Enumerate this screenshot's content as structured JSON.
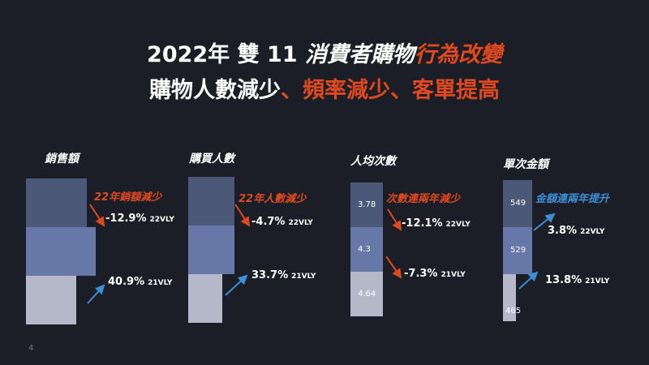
{
  "title": {
    "line1_white": "2022年 雙 11 ",
    "line1_italic": "消費者購物",
    "line1_orange": "行為改變",
    "line2_white": "購物人數減少",
    "line2_orange": "、頻率減少、客單提高"
  },
  "page_number": "4",
  "colors": {
    "dark_bar": "#4b5878",
    "mid_bar": "#6677a8",
    "light_bar": "#b5b8c8",
    "down": "#e0491f",
    "up": "#3c8fd6"
  },
  "chart_data": [
    {
      "type": "bar",
      "title": "銷售額",
      "note": "22年銷額減少",
      "bars": [
        {
          "label": "",
          "value": null
        },
        {
          "label": "",
          "value": null
        },
        {
          "label": "",
          "value": null
        }
      ],
      "changes": [
        {
          "value": "-12.9%",
          "period": "22VLY",
          "direction": "down"
        },
        {
          "value": "40.9%",
          "period": "21VLY",
          "direction": "up"
        }
      ]
    },
    {
      "type": "bar",
      "title": "購買人數",
      "note": "22年人數減少",
      "bars": [
        {
          "label": "",
          "value": null
        },
        {
          "label": "",
          "value": null
        },
        {
          "label": "",
          "value": null
        }
      ],
      "changes": [
        {
          "value": "-4.7%",
          "period": "22VLY",
          "direction": "down"
        },
        {
          "value": "33.7%",
          "period": "21VLY",
          "direction": "up"
        }
      ]
    },
    {
      "type": "bar",
      "title": "人均次數",
      "note": "次數連兩年減少",
      "bars": [
        {
          "label": "3.78",
          "value": 3.78
        },
        {
          "label": "4.3",
          "value": 4.3
        },
        {
          "label": "4.64",
          "value": 4.64
        }
      ],
      "changes": [
        {
          "value": "-12.1%",
          "period": "22VLY",
          "direction": "down"
        },
        {
          "value": "-7.3%",
          "period": "21VLY",
          "direction": "down"
        }
      ]
    },
    {
      "type": "bar",
      "title": "單次金額",
      "note": "金額連兩年提升",
      "bars": [
        {
          "label": "549",
          "value": 549
        },
        {
          "label": "529",
          "value": 529
        },
        {
          "label": "465",
          "value": 465
        }
      ],
      "changes": [
        {
          "value": "3.8%",
          "period": "22VLY",
          "direction": "up"
        },
        {
          "value": "13.8%",
          "period": "21VLY",
          "direction": "up"
        }
      ]
    }
  ]
}
